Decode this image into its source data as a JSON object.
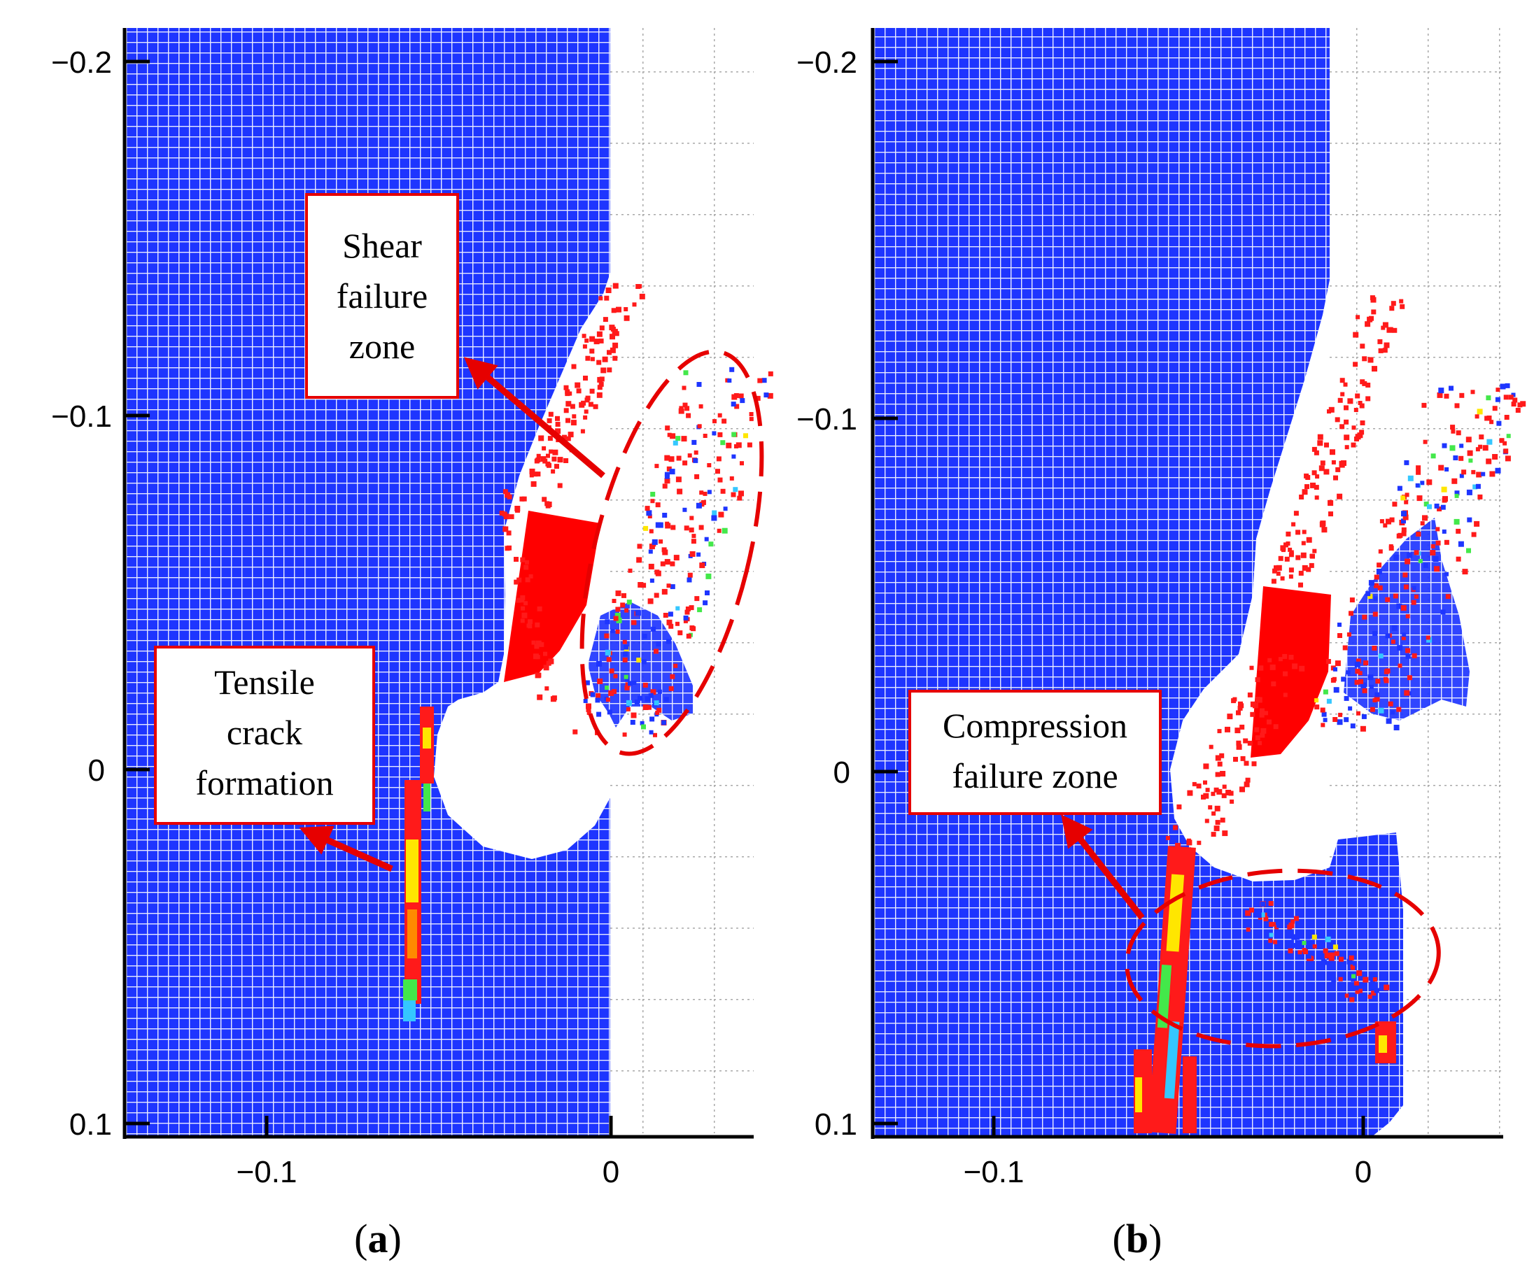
{
  "colors": {
    "mesh_blue": "#1e35ff",
    "mesh_line": "#ffffff",
    "failure_red": "#ff1a1a",
    "tool_red": "#ff0000",
    "crack_yellow": "#ffe600",
    "crack_green": "#43e84a",
    "crack_cyan": "#35c7ff",
    "annotation_red": "#e60000",
    "grid_dotted": "#a8a8a8"
  },
  "panels": [
    {
      "id": "a",
      "caption_open": "(",
      "caption_letter": "a",
      "caption_close": ")",
      "y_ticks": [
        "−0.2",
        "−0.1",
        "0",
        "0.1"
      ],
      "x_ticks": [
        "−0.1",
        "0"
      ],
      "callouts": [
        {
          "name": "shear-failure-zone",
          "lines": [
            "Shear",
            "failure",
            "zone"
          ]
        },
        {
          "name": "tensile-crack-formation",
          "lines": [
            "Tensile",
            "crack",
            "formation"
          ]
        }
      ]
    },
    {
      "id": "b",
      "caption_open": "(",
      "caption_letter": "b",
      "caption_close": ")",
      "y_ticks": [
        "−0.2",
        "−0.1",
        "0",
        "0.1"
      ],
      "x_ticks": [
        "−0.1",
        "0"
      ],
      "callouts": [
        {
          "name": "compression-failure-zone",
          "lines": [
            "Compression",
            "failure zone"
          ]
        }
      ]
    }
  ]
}
